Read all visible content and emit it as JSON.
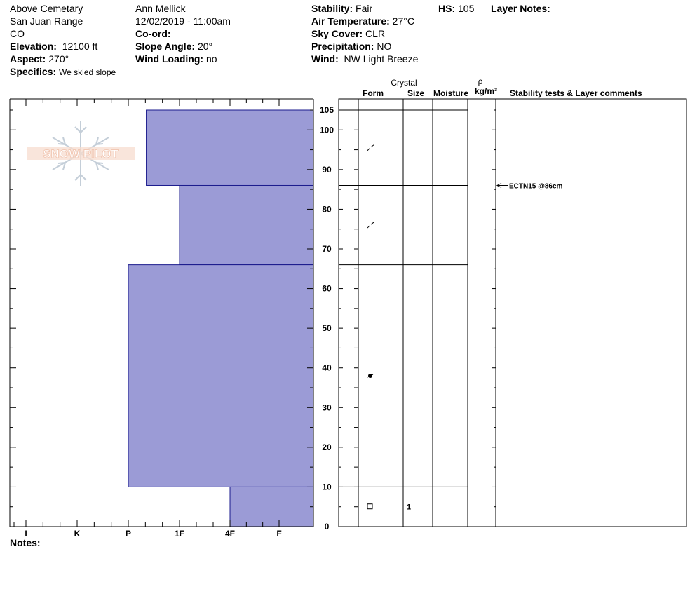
{
  "header": {
    "location": "Above Cemetary",
    "range": "San Juan Range",
    "state": "CO",
    "elevation_label": "Elevation:",
    "elevation_value": "12100 ft",
    "aspect_label": "Aspect:",
    "aspect_value": "270°",
    "specifics_label": "Specifics:",
    "specifics_value": "We skied slope",
    "observer": "Ann Mellick",
    "datetime": "12/02/2019 - 11:00am",
    "coord_label": "Co-ord:",
    "coord_value": "",
    "slope_label": "Slope Angle:",
    "slope_value": "20°",
    "wind_loading_label": "Wind Loading:",
    "wind_loading_value": "no",
    "stability_label": "Stability:",
    "stability_value": "Fair",
    "air_temp_label": "Air Temperature:",
    "air_temp_value": "27°C",
    "sky_label": "Sky Cover:",
    "sky_value": "CLR",
    "precip_label": "Precipitation:",
    "precip_value": "NO",
    "wind_label": "Wind:",
    "wind_value": "NW Light Breeze",
    "hs_label": "HS:",
    "hs_value": "105",
    "layer_notes_label": "Layer Notes:"
  },
  "notes_label": "Notes:",
  "logo_text": "SNOW PILOT",
  "colors": {
    "hardness_fill": "#9b9bd6",
    "hardness_stroke": "#1a1a8c",
    "logo_text": "#f2c8b4",
    "logo_flake": "#c4ced8"
  },
  "columns": {
    "crystal": "Crystal",
    "form": "Form",
    "size": "Size",
    "moisture": "Moisture",
    "rho": "ρ",
    "density_unit": "kg/m³",
    "comments": "Stability tests & Layer comments"
  },
  "chart_data": {
    "type": "snow_profile",
    "y_axis": {
      "range": [
        0,
        105
      ],
      "ticks": [
        0,
        10,
        20,
        30,
        40,
        50,
        60,
        70,
        80,
        90,
        100,
        105
      ],
      "unit": "cm"
    },
    "x_axis": {
      "hardness_labels": [
        "I",
        "K",
        "P",
        "1F",
        "4F",
        "F"
      ],
      "direction": "hardness decreases to the right"
    },
    "layers": [
      {
        "top": 105,
        "bottom": 86,
        "hardness": "P+",
        "hardness_index": 2.35,
        "form_symbol": "decomposing",
        "size": "",
        "moisture": ""
      },
      {
        "top": 86,
        "bottom": 66,
        "hardness": "1F",
        "hardness_index": 3.0,
        "form_symbol": "decomposing",
        "size": "",
        "moisture": ""
      },
      {
        "top": 66,
        "bottom": 10,
        "hardness": "P",
        "hardness_index": 2.0,
        "form_symbol": "melt-freeze",
        "size": "",
        "moisture": ""
      },
      {
        "top": 10,
        "bottom": 0,
        "hardness": "4F",
        "hardness_index": 4.0,
        "form_symbol": "faceted",
        "size": "1",
        "moisture": ""
      }
    ],
    "stability_tests": [
      {
        "depth": 86,
        "label": "ECTN15 @86cm"
      }
    ]
  }
}
